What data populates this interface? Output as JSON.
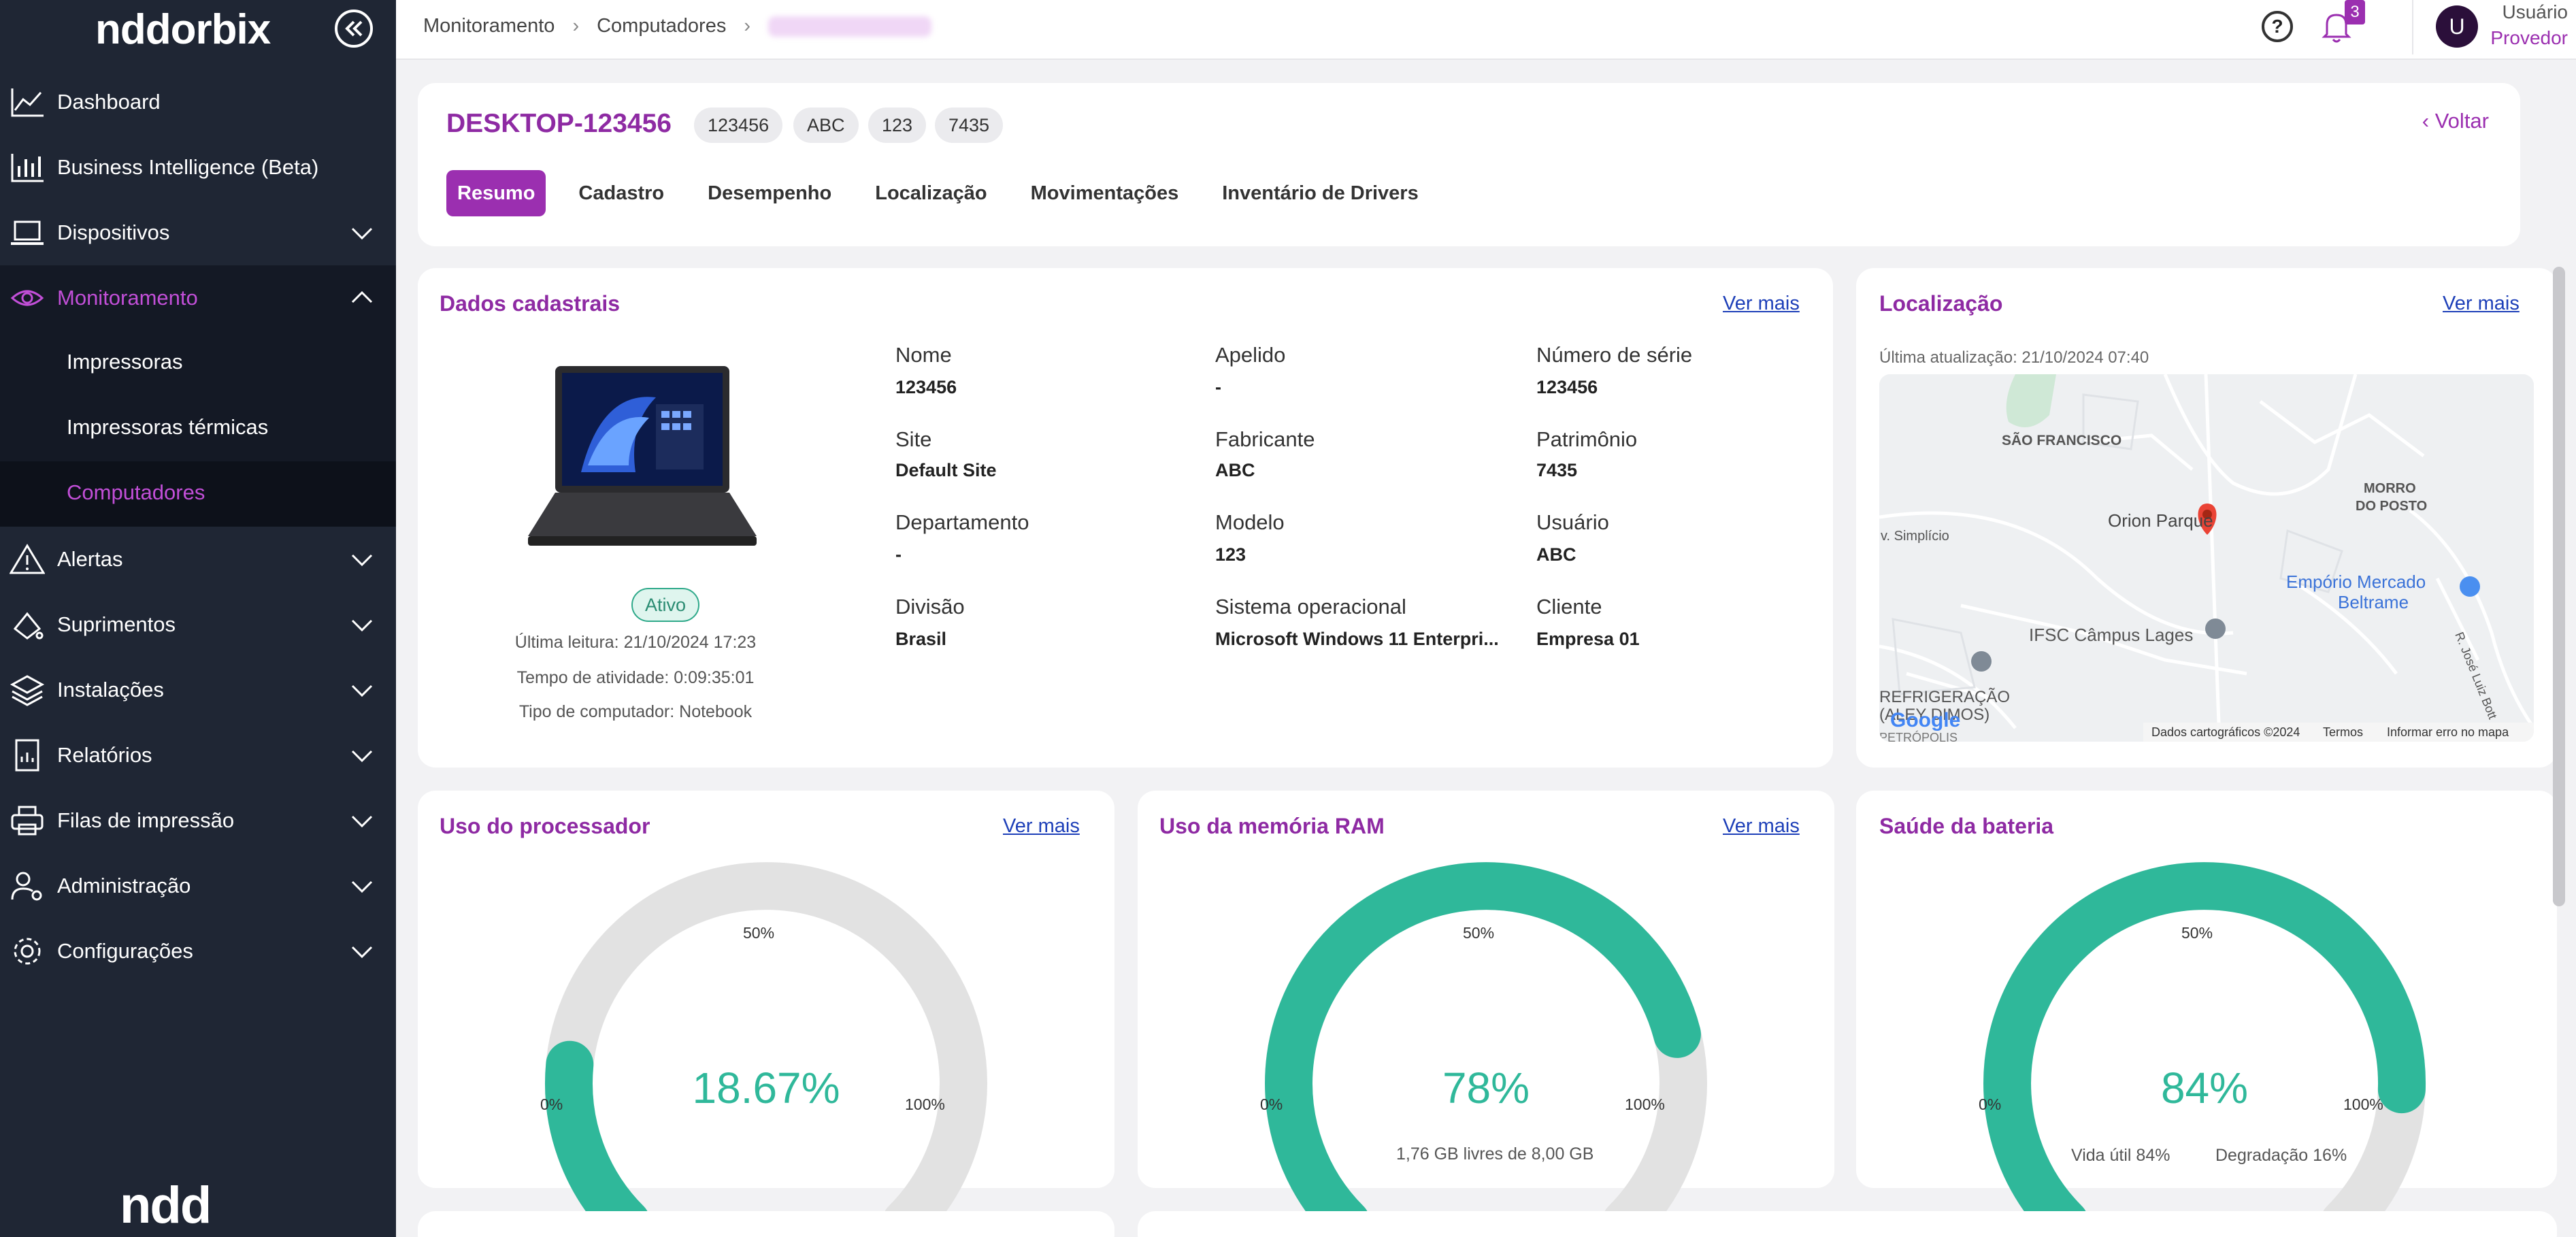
{
  "sidebar": {
    "logo": "nddorbix",
    "footer_logo": "ndd",
    "items": [
      {
        "label": "Dashboard"
      },
      {
        "label": "Business Intelligence (Beta)"
      },
      {
        "label": "Dispositivos"
      },
      {
        "label": "Monitoramento"
      },
      {
        "label": "Alertas"
      },
      {
        "label": "Suprimentos"
      },
      {
        "label": "Instalações"
      },
      {
        "label": "Relatórios"
      },
      {
        "label": "Filas de impressão"
      },
      {
        "label": "Administração"
      },
      {
        "label": "Configurações"
      }
    ],
    "sub_items": [
      {
        "label": "Impressoras"
      },
      {
        "label": "Impressoras térmicas"
      },
      {
        "label": "Computadores"
      }
    ]
  },
  "header": {
    "breadcrumb": [
      "Monitoramento",
      "Computadores"
    ],
    "help_icon": "help-icon",
    "notification_count": "3",
    "user_initial": "U",
    "user_name": "Usuário",
    "user_role": "Provedor"
  },
  "device": {
    "title": "DESKTOP-123456",
    "chips": [
      "123456",
      "ABC",
      "123",
      "7435"
    ],
    "back_label": "Voltar",
    "tabs": [
      "Resumo",
      "Cadastro",
      "Desempenho",
      "Localização",
      "Movimentações",
      "Inventário de Drivers"
    ]
  },
  "dados": {
    "title": "Dados cadastrais",
    "ver_mais": "Ver mais",
    "status": "Ativo",
    "ultima_leitura": "Última leitura: 21/10/2024 17:23",
    "tempo_atividade": "Tempo de atividade: 0:09:35:01",
    "tipo": "Tipo de computador: Notebook",
    "fields": [
      {
        "label": "Nome",
        "value": "123456"
      },
      {
        "label": "Apelido",
        "value": "-"
      },
      {
        "label": "Número de série",
        "value": "123456"
      },
      {
        "label": "Site",
        "value": "Default Site"
      },
      {
        "label": "Fabricante",
        "value": "ABC"
      },
      {
        "label": "Patrimônio",
        "value": "7435"
      },
      {
        "label": "Departamento",
        "value": "-"
      },
      {
        "label": "Modelo",
        "value": "123"
      },
      {
        "label": "Usuário",
        "value": "ABC"
      },
      {
        "label": "Divisão",
        "value": "Brasil"
      },
      {
        "label": "Sistema operacional",
        "value": "Microsoft Windows 11 Enterpri..."
      },
      {
        "label": "Cliente",
        "value": "Empresa 01"
      }
    ]
  },
  "localizacao": {
    "title": "Localização",
    "ver_mais": "Ver mais",
    "updated": "Última atualização: 21/10/2024 07:40",
    "map_labels": {
      "sao_francisco": "SÃO FRANCISCO",
      "morro": "MORRO",
      "do_posto": "DO POSTO",
      "orion": "Orion Parque",
      "simplicio": "v. Simplício",
      "emporio": "Empório Mercado",
      "beltrame": "Beltrame",
      "ifsc": "IFSC Câmpus Lages",
      "refrigeracao": "REFRIGERAÇÃO",
      "dimos": "(ALEY DIMOS)",
      "petropolis": "PETRÓPOLIS",
      "rua": "R. José Luiz Bott",
      "google": "Google",
      "dados": "Dados cartográficos ©2024",
      "termos": "Termos",
      "erro": "Informar erro no mapa"
    }
  },
  "gauges": {
    "cpu": {
      "title": "Uso do processador",
      "ver_mais": "Ver mais",
      "value": "18.67%",
      "fraction": 0.1867,
      "tick_min": "0%",
      "tick_mid": "50%",
      "tick_max": "100%"
    },
    "ram": {
      "title": "Uso da memória RAM",
      "ver_mais": "Ver mais",
      "value": "78%",
      "fraction": 0.78,
      "tick_min": "0%",
      "tick_mid": "50%",
      "tick_max": "100%",
      "note": "1,76 GB livres de 8,00 GB"
    },
    "battery": {
      "title": "Saúde da bateria",
      "value": "84%",
      "fraction": 0.84,
      "tick_min": "0%",
      "tick_mid": "50%",
      "tick_max": "100%",
      "vida_util": "Vida útil 84%",
      "degradacao": "Degradação 16%"
    }
  },
  "colors": {
    "accent": "#9b2fb0",
    "gauge_fill": "#2fb89a",
    "gauge_track": "#e2e2e2",
    "sidebar": "#1f2634"
  }
}
